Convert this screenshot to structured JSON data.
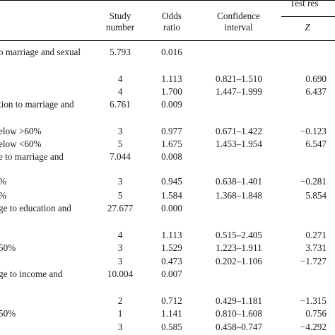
{
  "header": {
    "study_number": [
      "Study",
      "number"
    ],
    "odds_ratio": [
      "Odds",
      "ratio"
    ],
    "confidence_interval": [
      "Confidence",
      "interval"
    ],
    "test_results": "Test res",
    "z": "Z"
  },
  "rows": [
    {
      "label": "o marriage and sexual",
      "num": "5.793",
      "or": "0.016",
      "ci": "",
      "z": ""
    },
    {
      "label": "",
      "num": "4",
      "or": "1.113",
      "ci": "0.821–1.510",
      "z": "0.690"
    },
    {
      "label": "",
      "num": "4",
      "or": "1.700",
      "ci": "1.447–1.999",
      "z": "6.437"
    },
    {
      "label": "tion to marriage and",
      "num": "6.761",
      "or": "0.009",
      "ci": "",
      "z": ""
    },
    {
      "label": "elow  >60%",
      "num": "3",
      "or": "0.977",
      "ci": "0.671–1.422",
      "z": "−0.123"
    },
    {
      "label": "elow  <60%",
      "num": "5",
      "or": "1.675",
      "ci": "1.453–1.954",
      "z": "6.547"
    },
    {
      "label": "e to marriage and",
      "num": "7.044",
      "or": "0.008",
      "ci": "",
      "z": ""
    },
    {
      "label": "%",
      "num": "3",
      "or": "0.945",
      "ci": "0.638–1.401",
      "z": "−0.281"
    },
    {
      "label": "%",
      "num": "5",
      "or": "1.584",
      "ci": "1.368–1.848",
      "z": "5.854"
    },
    {
      "label": "ge to education and",
      "num": "27.677",
      "or": "0.000",
      "ci": "",
      "z": ""
    },
    {
      "label": "",
      "num": "4",
      "or": "1.113",
      "ci": "0.515–2.405",
      "z": "0.271"
    },
    {
      "label": "50%",
      "num": "3",
      "or": "1.529",
      "ci": "1.223–1.911",
      "z": "3.731"
    },
    {
      "label": "",
      "num": "3",
      "or": "0.473",
      "ci": "0.202–1.106",
      "z": "−1.727"
    },
    {
      "label": "ge to income and",
      "num": "10.004",
      "or": "0.007",
      "ci": "",
      "z": ""
    },
    {
      "label": "",
      "num": "2",
      "or": "0.712",
      "ci": "0.429–1.181",
      "z": "−1.315"
    },
    {
      "label": "50%",
      "num": "1",
      "or": "1.141",
      "ci": "0.810–1.608",
      "z": "0.756"
    },
    {
      "label": "",
      "num": "3",
      "or": "0.585",
      "ci": "0.458–0.747",
      "z": "−4.292"
    }
  ]
}
